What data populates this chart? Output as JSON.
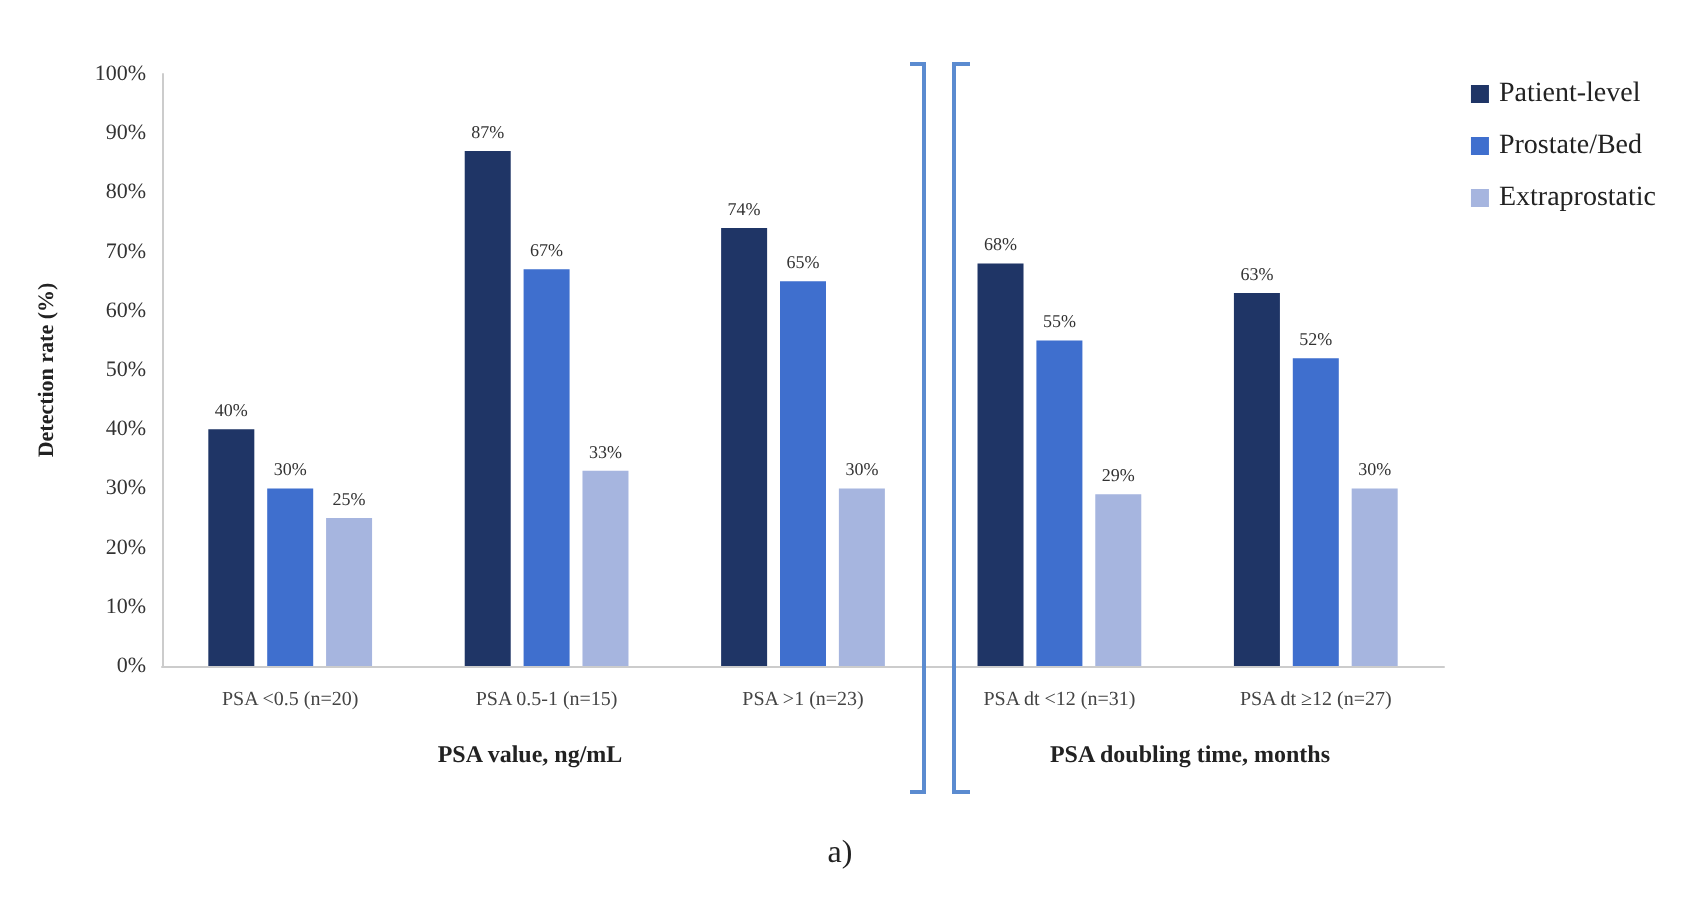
{
  "chart_data": {
    "type": "bar",
    "ylabel": "Detection rate (%)",
    "categories": [
      "PSA <0.5 (n=20)",
      "PSA 0.5-1 (n=15)",
      "PSA >1 (n=23)",
      "PSA dt <12 (n=31)",
      "PSA dt ≥12 (n=27)"
    ],
    "series": [
      {
        "name": "Patient-level",
        "color": "#1f3566",
        "values": [
          40,
          87,
          74,
          68,
          63
        ],
        "value_labels": [
          "40%",
          "87%",
          "74%",
          "68%",
          "63%"
        ]
      },
      {
        "name": "Prostate/Bed",
        "color": "#3f6fce",
        "values": [
          30,
          67,
          65,
          55,
          52
        ],
        "value_labels": [
          "30%",
          "67%",
          "65%",
          "55%",
          "52%"
        ]
      },
      {
        "name": "Extraprostatic",
        "color": "#a6b5df",
        "values": [
          25,
          33,
          30,
          29,
          30
        ],
        "value_labels": [
          "25%",
          "33%",
          "30%",
          "29%",
          "30%"
        ]
      }
    ],
    "ylim": [
      0,
      100
    ],
    "yticks": [
      {
        "value": 0,
        "label": "0%"
      },
      {
        "value": 10,
        "label": "10%"
      },
      {
        "value": 20,
        "label": "20%"
      },
      {
        "value": 30,
        "label": "30%"
      },
      {
        "value": 40,
        "label": "40%"
      },
      {
        "value": 50,
        "label": "50%"
      },
      {
        "value": 60,
        "label": "60%"
      },
      {
        "value": 70,
        "label": "70%"
      },
      {
        "value": 80,
        "label": "80%"
      },
      {
        "value": 90,
        "label": "90%"
      },
      {
        "value": 100,
        "label": "100%"
      }
    ],
    "annotations": [
      "PSA value, ng/mL",
      "PSA doubling time, months",
      "a)"
    ],
    "legend": "top right",
    "grid": false
  }
}
